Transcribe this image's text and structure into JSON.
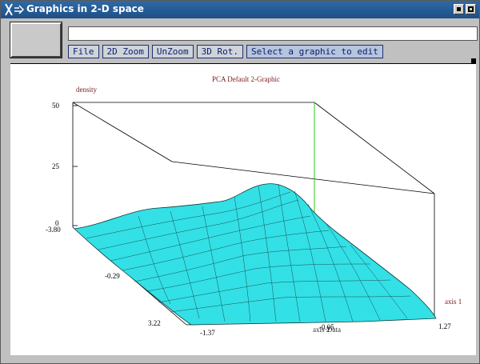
{
  "window": {
    "title": "Graphics in 2-D space",
    "title_icon": "X",
    "buttons": [
      "minimize-icon",
      "maximize-icon"
    ]
  },
  "toolbar": {
    "file": "File",
    "zoom2d": "2D Zoom",
    "unzoom": "UnZoom",
    "rot3d": "3D Rot.",
    "select": "Select a graphic to edit"
  },
  "status_field": {
    "value": ""
  },
  "plot": {
    "title": "PCA Default 2-Graphic",
    "zlabel": "density",
    "axis1_label": "axis 1",
    "axis2_label": "axis 2",
    "data_label": "Data",
    "z_ticks": [
      "50",
      "25",
      "0"
    ],
    "y_ticks": [
      "-3.80",
      "-0.29",
      "3.22"
    ],
    "x_ticks": [
      "-1.37",
      "-0.05",
      "1.27"
    ],
    "colors": {
      "surface": "#33e0e6",
      "mesh": "#103a3a",
      "highlight": "#27c915",
      "label": "#7a1a1a"
    }
  }
}
